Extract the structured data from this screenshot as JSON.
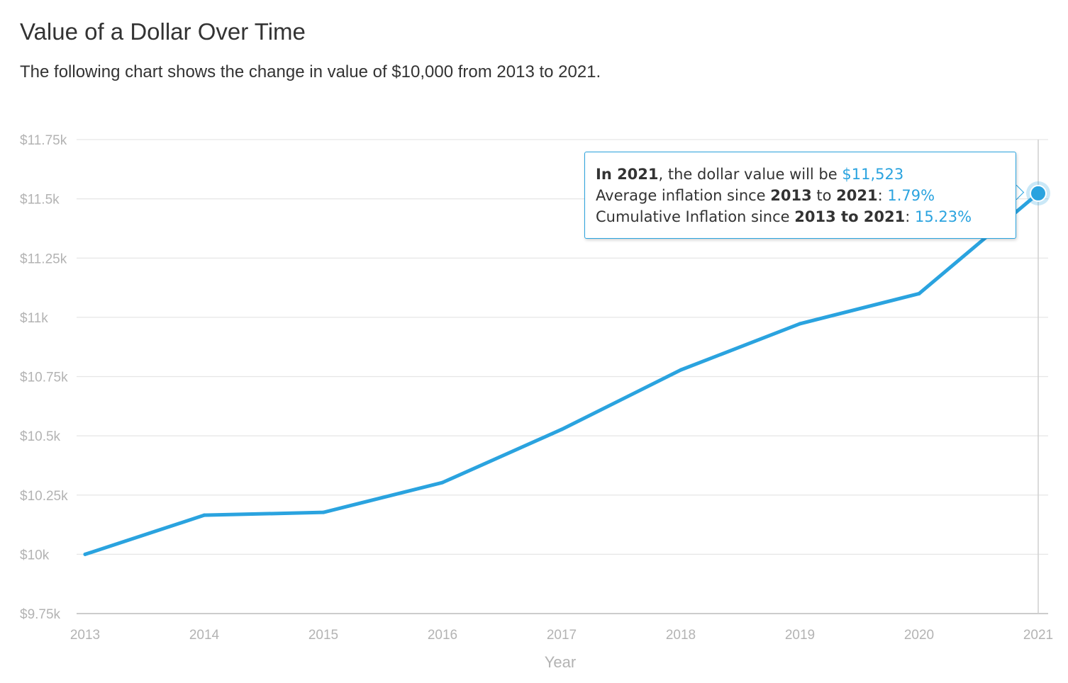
{
  "header": {
    "title": "Value of a Dollar Over Time",
    "subtitle": "The following chart shows the change in value of $10,000 from 2013 to 2021."
  },
  "tooltip": {
    "year_prefix": "In 2021",
    "value_text": ", the dollar value will be ",
    "value": "$11,523",
    "avg_label": "Average inflation since ",
    "avg_from": "2013",
    "avg_mid": " to ",
    "avg_to": "2021",
    "avg_sep": ": ",
    "avg_value": "1.79%",
    "cum_label": "Cumulative Inflation since ",
    "cum_range": "2013 to 2021",
    "cum_sep": ": ",
    "cum_value": "15.23%"
  },
  "colors": {
    "line": "#2aa3df",
    "grid": "#e6e6e6",
    "axis_text": "#b3b3b3",
    "title": "#333333"
  },
  "chart_data": {
    "type": "line",
    "title": "Value of a Dollar Over Time",
    "subtitle": "The following chart shows the change in value of $10,000 from 2013 to 2021.",
    "xlabel": "Year",
    "ylabel": "",
    "x": [
      "2013",
      "2014",
      "2015",
      "2016",
      "2017",
      "2018",
      "2019",
      "2020",
      "2021"
    ],
    "series": [
      {
        "values": [
          10000,
          10165,
          10177,
          10303,
          10527,
          10778,
          10973,
          11100,
          11523
        ]
      }
    ],
    "ylim": [
      9750,
      11750
    ],
    "yticks": [
      9750,
      10000,
      10250,
      10500,
      10750,
      11000,
      11250,
      11500,
      11750
    ],
    "ytick_labels": [
      "$9.75k",
      "$10k",
      "$10.25k",
      "$10.5k",
      "$10.75k",
      "$11k",
      "$11.25k",
      "$11.5k",
      "$11.75k"
    ],
    "highlight_index": 8,
    "grid": true,
    "legend": "none"
  }
}
